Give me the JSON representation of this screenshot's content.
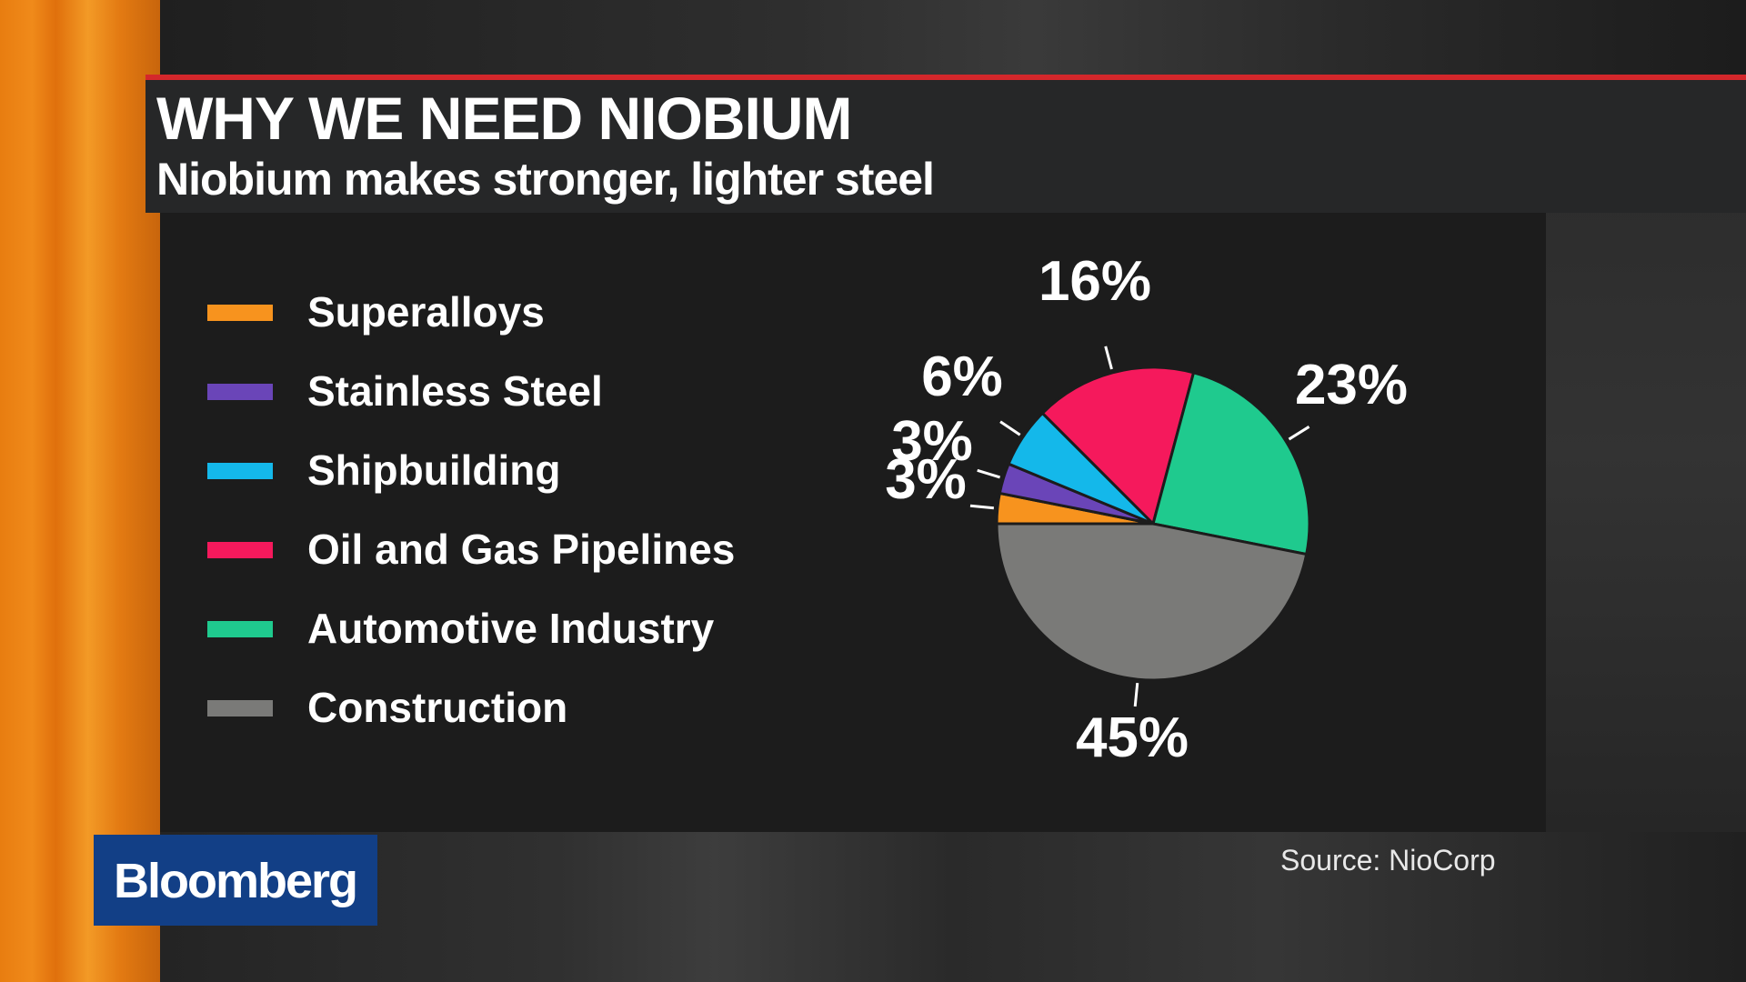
{
  "title": "WHY WE NEED NIOBIUM",
  "subtitle": "Niobium makes stronger, lighter steel",
  "source": "Source: NioCorp",
  "logo": "Bloomberg",
  "chart_data": {
    "type": "pie",
    "title": "WHY WE NEED NIOBIUM",
    "subtitle": "Niobium makes stronger, lighter steel",
    "legend_position": "left",
    "slices": [
      {
        "label": "Superalloys",
        "value": 3,
        "value_label": "3%",
        "color": "#f7931e"
      },
      {
        "label": "Stainless Steel",
        "value": 3,
        "value_label": "3%",
        "color": "#6a45b8"
      },
      {
        "label": "Shipbuilding",
        "value": 6,
        "value_label": "6%",
        "color": "#14b8ea"
      },
      {
        "label": "Oil and Gas Pipelines",
        "value": 16,
        "value_label": "16%",
        "color": "#f5195c"
      },
      {
        "label": "Automotive Industry",
        "value": 23,
        "value_label": "23%",
        "color": "#1fca8e"
      },
      {
        "label": "Construction",
        "value": 45,
        "value_label": "45%",
        "color": "#7a7a78"
      }
    ]
  }
}
